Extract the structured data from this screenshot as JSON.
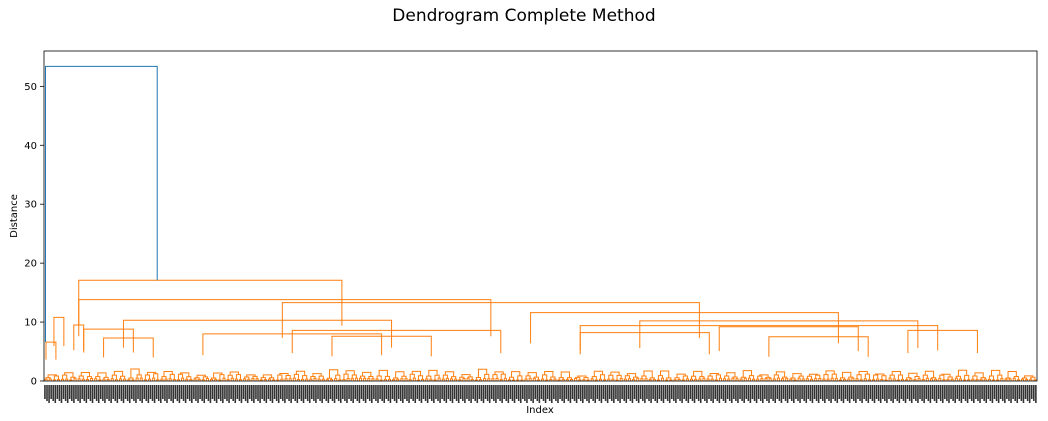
{
  "chart_data": {
    "type": "dendrogram",
    "title": "Dendrogram Complete Method",
    "xlabel": "Index",
    "ylabel": "Distance",
    "ylim": [
      0,
      56
    ],
    "y_ticks": [
      0,
      10,
      20,
      30,
      40,
      50
    ],
    "colors": {
      "cluster": "#ff7f0e",
      "root": "#1f77b4",
      "axis": "#000000"
    },
    "root_merge": {
      "height": 53.4,
      "left_cluster_height": 6.6,
      "right_cluster_height": 17.1
    },
    "major_merges": [
      {
        "height": 17.1,
        "left": 0.035,
        "right": 0.3
      },
      {
        "height": 13.8,
        "left": 0.035,
        "right": 0.45
      },
      {
        "height": 13.3,
        "left": 0.24,
        "right": 0.66
      },
      {
        "height": 11.6,
        "left": 0.49,
        "right": 0.8
      },
      {
        "height": 10.8,
        "left": 0.01,
        "right": 0.02
      },
      {
        "height": 10.3,
        "left": 0.08,
        "right": 0.35
      },
      {
        "height": 10.2,
        "left": 0.6,
        "right": 0.88
      },
      {
        "height": 9.5,
        "left": 0.03,
        "right": 0.04
      },
      {
        "height": 9.4,
        "left": 0.54,
        "right": 0.9
      },
      {
        "height": 9.2,
        "left": 0.68,
        "right": 0.82
      },
      {
        "height": 8.8,
        "left": 0.04,
        "right": 0.09
      },
      {
        "height": 8.6,
        "left": 0.25,
        "right": 0.46
      },
      {
        "height": 8.6,
        "left": 0.87,
        "right": 0.94
      },
      {
        "height": 8.2,
        "left": 0.54,
        "right": 0.67
      },
      {
        "height": 8.0,
        "left": 0.16,
        "right": 0.34
      },
      {
        "height": 7.6,
        "left": 0.29,
        "right": 0.39
      },
      {
        "height": 7.5,
        "left": 0.73,
        "right": 0.83
      },
      {
        "height": 7.3,
        "left": 0.06,
        "right": 0.11
      },
      {
        "height": 6.6,
        "left": 0.002,
        "right": 0.012
      }
    ],
    "n_leaves": 480,
    "leaf_label_style": "dense, overlapping, unreadable"
  }
}
